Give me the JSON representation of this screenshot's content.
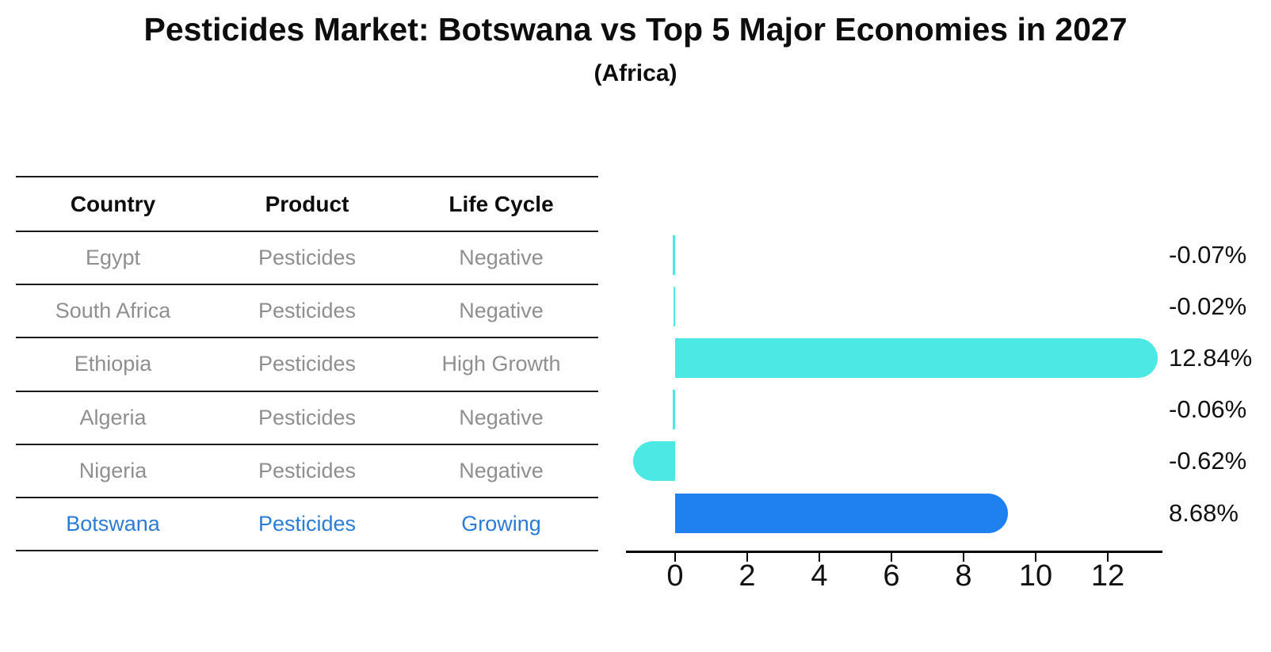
{
  "title": "Pesticides Market: Botswana vs Top 5 Major Economies in 2027",
  "subtitle": "(Africa)",
  "colors": {
    "bar_default": "#4be8e4",
    "bar_highlight": "#1f80f0",
    "table_text": "#8f8f8f",
    "highlight_text": "#2b7cd6",
    "axis": "#000000"
  },
  "table": {
    "headers": [
      "Country",
      "Product",
      "Life Cycle"
    ],
    "rows": [
      [
        "Egypt",
        "Pesticides",
        "Negative"
      ],
      [
        "South Africa",
        "Pesticides",
        "Negative"
      ],
      [
        "Ethiopia",
        "Pesticides",
        "High Growth"
      ],
      [
        "Algeria",
        "Pesticides",
        "Negative"
      ],
      [
        "Nigeria",
        "Pesticides",
        "Negative"
      ],
      [
        "Botswana",
        "Pesticides",
        "Growing"
      ]
    ],
    "highlight_row": 5
  },
  "chart_data": {
    "type": "bar",
    "orientation": "horizontal",
    "title": "Pesticides Market: Botswana vs Top 5 Major Economies in 2027",
    "subtitle": "(Africa)",
    "categories": [
      "Egypt",
      "South Africa",
      "Ethiopia",
      "Algeria",
      "Nigeria",
      "Botswana"
    ],
    "values": [
      -0.07,
      -0.02,
      12.84,
      -0.06,
      -0.62,
      8.68
    ],
    "value_labels": [
      "-0.07%",
      "-0.02%",
      "12.84%",
      "-0.06%",
      "-0.62%",
      "8.68%"
    ],
    "unit": "percent",
    "x_ticks": [
      "0",
      "2",
      "4",
      "6",
      "8",
      "10",
      "12"
    ],
    "xlim": [
      -1.4,
      13.6
    ],
    "highlight_index": 5,
    "grid": false,
    "legend": false
  }
}
